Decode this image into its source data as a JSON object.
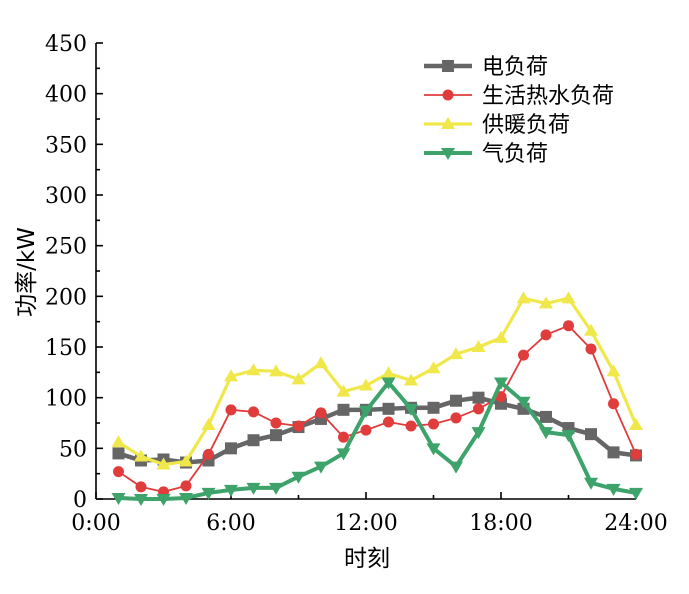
{
  "chart_data": {
    "type": "line",
    "title": "",
    "xlabel": "时刻",
    "ylabel": "功率/kW",
    "xlim": [
      0,
      24
    ],
    "ylim": [
      0,
      450
    ],
    "xticks": [
      0,
      6,
      12,
      18,
      24
    ],
    "xtick_labels": [
      "0:00",
      "6:00",
      "12:00",
      "18:00",
      "24:00"
    ],
    "yticks": [
      0,
      50,
      100,
      150,
      200,
      250,
      300,
      350,
      400,
      450
    ],
    "ytick_labels": [
      "0",
      "50",
      "100",
      "150",
      "200",
      "250",
      "300",
      "350",
      "400",
      "450"
    ],
    "legend_position": "top-right",
    "x": [
      1,
      2,
      3,
      4,
      5,
      6,
      7,
      8,
      9,
      10,
      11,
      12,
      13,
      14,
      15,
      16,
      17,
      18,
      19,
      20,
      21,
      22,
      23,
      24
    ],
    "series": [
      {
        "name": "电负荷",
        "color": "#666666",
        "marker": "square",
        "values": [
          45,
          38,
          39,
          36,
          38,
          50,
          58,
          63,
          71,
          79,
          88,
          88,
          89,
          90,
          90,
          97,
          100,
          94,
          89,
          81,
          70,
          64,
          46,
          43
        ]
      },
      {
        "name": "生活热水负荷",
        "color": "#e03c3c",
        "marker": "circle",
        "values": [
          27,
          12,
          7,
          13,
          44,
          88,
          86,
          75,
          72,
          85,
          61,
          68,
          76,
          72,
          74,
          80,
          89,
          101,
          142,
          162,
          171,
          148,
          94,
          44
        ]
      },
      {
        "name": "供暖负荷",
        "color": "#f0e84a",
        "marker": "triangle-up",
        "values": [
          56,
          42,
          34,
          37,
          73,
          121,
          127,
          126,
          118,
          134,
          106,
          112,
          124,
          117,
          129,
          143,
          150,
          159,
          198,
          193,
          198,
          166,
          126,
          73
        ]
      },
      {
        "name": "气负荷",
        "color": "#3da36a",
        "marker": "triangle-down",
        "values": [
          1,
          0,
          0,
          1,
          6,
          9,
          11,
          11,
          22,
          32,
          45,
          87,
          115,
          89,
          50,
          32,
          66,
          115,
          96,
          66,
          63,
          16,
          10,
          6
        ]
      }
    ]
  }
}
